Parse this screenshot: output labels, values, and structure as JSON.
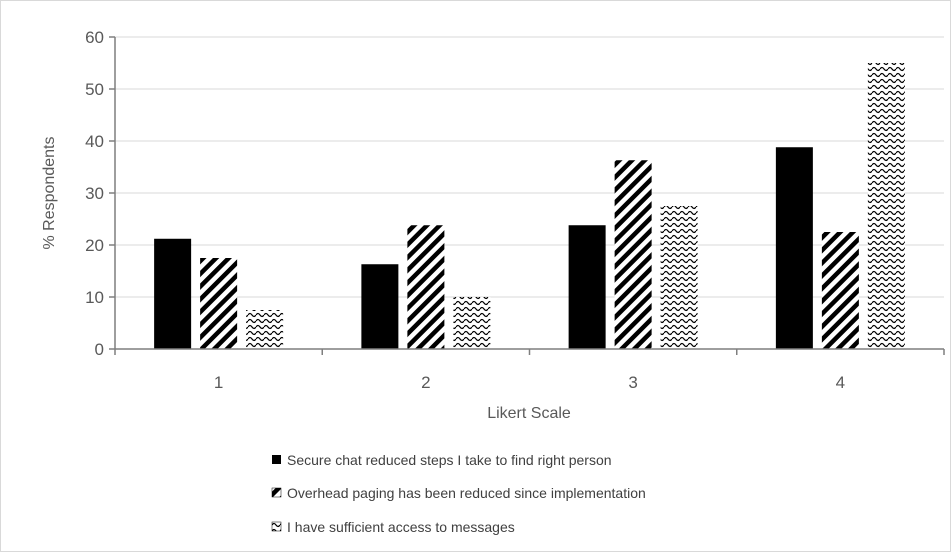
{
  "chart_data": {
    "type": "bar",
    "title": "",
    "xlabel": "Likert Scale",
    "ylabel": "% Respondents",
    "categories": [
      "1",
      "2",
      "3",
      "4"
    ],
    "ylim": [
      0,
      60
    ],
    "yticks": [
      0,
      10,
      20,
      30,
      40,
      50,
      60
    ],
    "grid": true,
    "legend_position": "bottom",
    "series": [
      {
        "name": "Secure chat reduced steps I take to find right person",
        "pattern": "solid",
        "color": "#000000",
        "values": [
          21.2,
          16.3,
          23.8,
          38.8
        ]
      },
      {
        "name": "Overhead paging has been reduced since implementation",
        "pattern": "diagonal-stripes",
        "color": "#000000",
        "values": [
          17.5,
          23.8,
          36.3,
          22.5
        ]
      },
      {
        "name": "I have sufficient access to messages",
        "pattern": "wave",
        "color": "#000000",
        "values": [
          7.5,
          10.0,
          27.5,
          55.0
        ]
      }
    ]
  }
}
